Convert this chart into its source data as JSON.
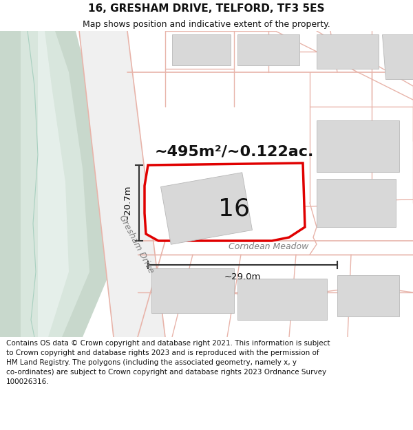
{
  "title": "16, GRESHAM DRIVE, TELFORD, TF3 5ES",
  "subtitle": "Map shows position and indicative extent of the property.",
  "footer": "Contains OS data © Crown copyright and database right 2021. This information is subject\nto Crown copyright and database rights 2023 and is reproduced with the permission of\nHM Land Registry. The polygons (including the associated geometry, namely x, y\nco-ordinates) are subject to Crown copyright and database rights 2023 Ordnance Survey\n100026316.",
  "area_text": "~495m²/~0.122ac.",
  "label_16": "16",
  "dim_width": "~29.0m",
  "dim_height": "~20.7m",
  "street_gresham": "Gresham Drive",
  "street_corndean": "Corndean Meadow",
  "map_bg": "#f5f5f5",
  "white": "#ffffff",
  "green_outer": "#c8d8cc",
  "green_inner": "#d8e6dd",
  "green_lightest": "#e5efea",
  "road_pink": "#e8b4aa",
  "road_light": "#f0ddd8",
  "building_fill": "#d8d8d8",
  "building_edge": "#b8b8b8",
  "highlight_red": "#e00000",
  "dim_color": "#333333",
  "text_dark": "#111111",
  "text_grey": "#808080",
  "title_fontsize": 11,
  "subtitle_fontsize": 9,
  "footer_fontsize": 7.5,
  "figsize": [
    6.0,
    6.25
  ],
  "dpi": 100
}
